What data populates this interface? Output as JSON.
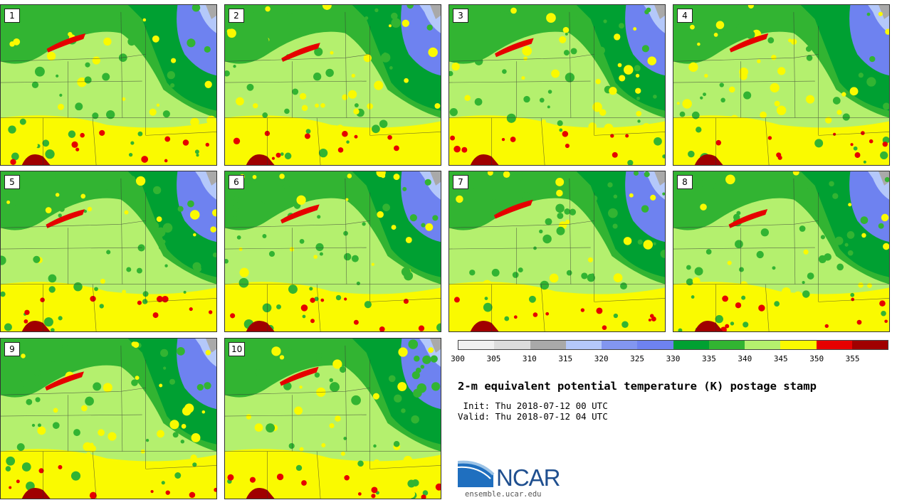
{
  "stamps": [
    "1",
    "2",
    "3",
    "4",
    "5",
    "6",
    "7",
    "8",
    "9",
    "10"
  ],
  "colorbar": {
    "colors": [
      "#f0f0f0",
      "#dcdcdc",
      "#a9a9a9",
      "#b4c8fa",
      "#8296f0",
      "#6e82f0",
      "#00a032",
      "#32b432",
      "#b4f06e",
      "#fafa00",
      "#e60000",
      "#a00000"
    ],
    "ticks": [
      "300",
      "305",
      "310",
      "315",
      "320",
      "325",
      "330",
      "335",
      "340",
      "345",
      "350",
      "355"
    ]
  },
  "title": "2-m equivalent potential temperature (K) postage stamp",
  "init": " Init: Thu 2018-07-12 00 UTC",
  "valid": "Valid: Thu 2018-07-12 04 UTC",
  "logo": {
    "text": "NCAR",
    "url": "ensemble.ucar.edu"
  }
}
